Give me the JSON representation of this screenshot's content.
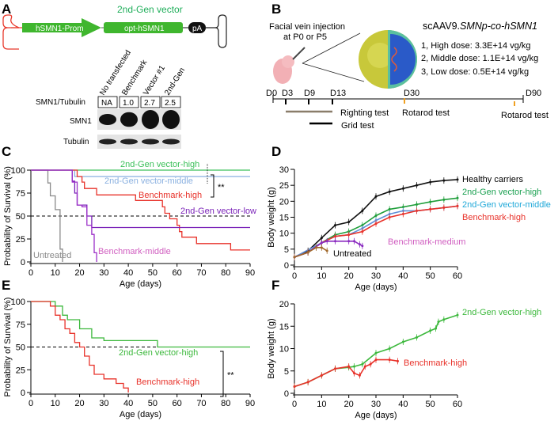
{
  "panels": {
    "a": "A",
    "b": "B",
    "c": "C",
    "d": "D",
    "e": "E",
    "f": "F"
  },
  "panel_a": {
    "title": "2nd-Gen vector",
    "promoter": "hSMN1-Prom",
    "gene": "opt-hSMN1",
    "polya": "pA",
    "lanes": [
      "No transfected",
      "Benchmark",
      "Vector #1",
      "2nd-Gen"
    ],
    "ratio_label": "SMN1/Tubulin",
    "ratios": [
      "NA",
      "1.0",
      "2.7",
      "2.5"
    ],
    "rows": [
      "SMN1",
      "Tubulin"
    ],
    "band_intensity_smn1": [
      0.45,
      0.7,
      1.0,
      1.0
    ],
    "colors": {
      "green": "#3fb62e",
      "itr_left": "#e8382b",
      "title": "#1fae5a"
    }
  },
  "panel_b": {
    "injection": [
      "Facial vein injection",
      "at P0 or P5"
    ],
    "vector_prefix": "scAAV9.",
    "vector_italic": "SMNp-co-hSMN1",
    "doses": [
      "1, High dose: 3.3E+14 vg/kg",
      "2, Middle dose: 1.1E+14 vg/kg",
      "3, Low dose: 0.5E+14 vg/kg"
    ],
    "timeline": [
      "D0",
      "D3",
      "D9",
      "D13",
      "D30",
      "D90"
    ],
    "tests": {
      "righting": "Righting test",
      "grid": "Grid test",
      "rotarod1": "Rotarod test",
      "rotarod2": "Rotarod test"
    }
  },
  "chart_data": [
    {
      "id": "C",
      "type": "line",
      "step": true,
      "xlabel": "Age (days)",
      "ylabel": "Probability of Survival (%)",
      "xlim": [
        0,
        90
      ],
      "ylim": [
        0,
        100
      ],
      "xticks": [
        "0",
        "10",
        "20",
        "30",
        "40",
        "50",
        "60",
        "70",
        "80",
        "90"
      ],
      "yticks": [
        "0",
        "25",
        "50",
        "75",
        "100"
      ],
      "hline": 50,
      "significance": "**",
      "series": [
        {
          "name": "Untreated",
          "color": "#8a8a8a",
          "points": [
            [
              0,
              100
            ],
            [
              7,
              100
            ],
            [
              7,
              86
            ],
            [
              8,
              86
            ],
            [
              8,
              72
            ],
            [
              10,
              72
            ],
            [
              10,
              57
            ],
            [
              12,
              57
            ],
            [
              12,
              14
            ],
            [
              13,
              14
            ],
            [
              13,
              0
            ]
          ]
        },
        {
          "name": "2nd-Gen vector-high",
          "color": "#3cc05a",
          "points": [
            [
              0,
              100
            ],
            [
              90,
              100
            ]
          ]
        },
        {
          "name": "2nd-Gen vector-middle",
          "color": "#8ab0e0",
          "points": [
            [
              0,
              100
            ],
            [
              18,
              100
            ],
            [
              18,
              93
            ],
            [
              90,
              93
            ]
          ]
        },
        {
          "name": "Benchmark-high",
          "color": "#e8322a",
          "points": [
            [
              0,
              100
            ],
            [
              19,
              100
            ],
            [
              19,
              93
            ],
            [
              21,
              93
            ],
            [
              21,
              87
            ],
            [
              22,
              87
            ],
            [
              22,
              80
            ],
            [
              27,
              80
            ],
            [
              27,
              73
            ],
            [
              43,
              73
            ],
            [
              43,
              67
            ],
            [
              54,
              67
            ],
            [
              54,
              60
            ],
            [
              55,
              60
            ],
            [
              55,
              53
            ],
            [
              57,
              53
            ],
            [
              57,
              47
            ],
            [
              60,
              47
            ],
            [
              60,
              40
            ],
            [
              61,
              40
            ],
            [
              61,
              33
            ],
            [
              62,
              33
            ],
            [
              62,
              27
            ],
            [
              68,
              27
            ],
            [
              68,
              20
            ],
            [
              82,
              20
            ],
            [
              82,
              13
            ],
            [
              90,
              13
            ]
          ]
        },
        {
          "name": "2nd-Gen vector-low",
          "color": "#7a22b8",
          "points": [
            [
              0,
              100
            ],
            [
              17,
              100
            ],
            [
              17,
              88
            ],
            [
              18,
              88
            ],
            [
              18,
              75
            ],
            [
              19,
              75
            ],
            [
              19,
              62
            ],
            [
              21,
              62
            ],
            [
              21,
              62
            ],
            [
              23,
              62
            ],
            [
              23,
              50
            ],
            [
              25,
              50
            ],
            [
              25,
              37.5
            ],
            [
              90,
              37.5
            ]
          ]
        },
        {
          "name": "Benchmark-middle",
          "color": "#9b2fc8",
          "label_color": "#d05ec0",
          "points": [
            [
              0,
              100
            ],
            [
              17,
              100
            ],
            [
              17,
              87
            ],
            [
              19,
              87
            ],
            [
              19,
              62
            ],
            [
              21,
              62
            ],
            [
              21,
              60
            ],
            [
              23,
              60
            ],
            [
              23,
              40
            ],
            [
              25,
              40
            ],
            [
              25,
              30
            ],
            [
              26,
              30
            ],
            [
              26,
              10
            ],
            [
              27,
              10
            ],
            [
              27,
              0
            ]
          ]
        }
      ]
    },
    {
      "id": "D",
      "type": "line",
      "xlabel": "Age (days)",
      "ylabel": "Body weight (g)",
      "xlim": [
        0,
        60
      ],
      "ylim": [
        0,
        30
      ],
      "xticks": [
        "0",
        "10",
        "20",
        "30",
        "40",
        "50",
        "60"
      ],
      "yticks": [
        "0",
        "5",
        "10",
        "15",
        "20",
        "25",
        "30"
      ],
      "series": [
        {
          "name": "Healthy carriers",
          "color": "#111111",
          "label_color": "#000000",
          "points": [
            [
              0,
              2.5
            ],
            [
              5,
              4.5
            ],
            [
              10,
              8.5
            ],
            [
              15,
              12.5
            ],
            [
              20,
              13.5
            ],
            [
              25,
              17
            ],
            [
              30,
              21.5
            ],
            [
              35,
              23
            ],
            [
              40,
              24
            ],
            [
              45,
              25
            ],
            [
              50,
              26
            ],
            [
              55,
              26.5
            ],
            [
              60,
              26.8
            ]
          ]
        },
        {
          "name": "2nd-Gen vector-high",
          "color": "#1f9e3a",
          "label_color": "#1aa050",
          "points": [
            [
              0,
              2.5
            ],
            [
              5,
              4
            ],
            [
              10,
              7
            ],
            [
              15,
              9.5
            ],
            [
              20,
              10.5
            ],
            [
              25,
              12.5
            ],
            [
              30,
              15.5
            ],
            [
              35,
              17.5
            ],
            [
              40,
              18.2
            ],
            [
              45,
              19
            ],
            [
              50,
              19.8
            ],
            [
              55,
              20.5
            ],
            [
              60,
              21
            ]
          ]
        },
        {
          "name": "2nd-Gen vector-middle",
          "color": "#5e8fd8",
          "label_color": "#1fa8d8",
          "points": [
            [
              0,
              2.5
            ],
            [
              10,
              7
            ],
            [
              15,
              9
            ],
            [
              20,
              9.5
            ],
            [
              25,
              11.5
            ],
            [
              30,
              14
            ],
            [
              35,
              16
            ],
            [
              40,
              17
            ],
            [
              45,
              17
            ],
            [
              50,
              17.5
            ],
            [
              55,
              18
            ],
            [
              60,
              18.5
            ]
          ]
        },
        {
          "name": "Benchmark-high",
          "color": "#e8322a",
          "label_color": "#e8322a",
          "points": [
            [
              0,
              2.5
            ],
            [
              5,
              4
            ],
            [
              10,
              7
            ],
            [
              15,
              9
            ],
            [
              20,
              9.5
            ],
            [
              25,
              10.5
            ],
            [
              30,
              13
            ],
            [
              35,
              15
            ],
            [
              40,
              16
            ],
            [
              45,
              17
            ],
            [
              50,
              17.5
            ],
            [
              55,
              18
            ],
            [
              60,
              18.5
            ]
          ]
        },
        {
          "name": "Benchmark-medium",
          "color": "#8a2bc0",
          "label_color": "#d05ec0",
          "points": [
            [
              0,
              2.5
            ],
            [
              5,
              4
            ],
            [
              10,
              7
            ],
            [
              12,
              7.5
            ],
            [
              15,
              7.5
            ],
            [
              20,
              7.5
            ],
            [
              22,
              7.5
            ],
            [
              24,
              6.5
            ],
            [
              25,
              6
            ]
          ]
        },
        {
          "name": "Untreated",
          "color": "#a0682a",
          "label_color": "#000000",
          "points": [
            [
              0,
              2.5
            ],
            [
              5,
              4
            ],
            [
              8,
              5.5
            ],
            [
              10,
              5.5
            ],
            [
              12,
              4.5
            ]
          ]
        }
      ]
    },
    {
      "id": "E",
      "type": "line",
      "step": true,
      "xlabel": "Age (days)",
      "ylabel": "Probability of Survival (%)",
      "xlim": [
        0,
        90
      ],
      "ylim": [
        0,
        100
      ],
      "xticks": [
        "0",
        "10",
        "20",
        "30",
        "40",
        "50",
        "60",
        "70",
        "80",
        "90"
      ],
      "yticks": [
        "0",
        "25",
        "50",
        "75",
        "100"
      ],
      "hline": 50,
      "significance": "**",
      "series": [
        {
          "name": "2nd-Gen vector-high",
          "color": "#3cb83c",
          "points": [
            [
              0,
              100
            ],
            [
              10,
              100
            ],
            [
              10,
              95
            ],
            [
              13,
              95
            ],
            [
              13,
              85
            ],
            [
              15,
              85
            ],
            [
              15,
              80
            ],
            [
              20,
              80
            ],
            [
              20,
              70
            ],
            [
              25,
              70
            ],
            [
              25,
              60
            ],
            [
              30,
              60
            ],
            [
              30,
              57
            ],
            [
              52,
              57
            ],
            [
              52,
              50
            ],
            [
              90,
              50
            ]
          ]
        },
        {
          "name": "Benchmark-high",
          "color": "#e8322a",
          "points": [
            [
              0,
              100
            ],
            [
              8,
              100
            ],
            [
              8,
              95
            ],
            [
              10,
              95
            ],
            [
              10,
              85
            ],
            [
              12,
              85
            ],
            [
              12,
              80
            ],
            [
              14,
              80
            ],
            [
              14,
              70
            ],
            [
              16,
              70
            ],
            [
              16,
              65
            ],
            [
              18,
              65
            ],
            [
              18,
              55
            ],
            [
              20,
              55
            ],
            [
              20,
              50
            ],
            [
              22,
              50
            ],
            [
              22,
              40
            ],
            [
              24,
              40
            ],
            [
              24,
              30
            ],
            [
              26,
              30
            ],
            [
              26,
              20
            ],
            [
              30,
              20
            ],
            [
              30,
              15
            ],
            [
              35,
              15
            ],
            [
              35,
              10
            ],
            [
              38,
              10
            ],
            [
              38,
              5
            ],
            [
              40,
              5
            ],
            [
              40,
              0
            ]
          ]
        }
      ]
    },
    {
      "id": "F",
      "type": "line",
      "xlabel": "Age (days)",
      "ylabel": "Body weight (g)",
      "xlim": [
        0,
        60
      ],
      "ylim": [
        0,
        20
      ],
      "xticks": [
        "0",
        "10",
        "20",
        "30",
        "40",
        "50",
        "60"
      ],
      "yticks": [
        "0",
        "5",
        "10",
        "15",
        "20"
      ],
      "series": [
        {
          "name": "2nd-Gen vector-high",
          "color": "#3cb83c",
          "points": [
            [
              0,
              1.5
            ],
            [
              5,
              2.5
            ],
            [
              10,
              4
            ],
            [
              15,
              5.5
            ],
            [
              20,
              5.8
            ],
            [
              22,
              6
            ],
            [
              25,
              6.5
            ],
            [
              30,
              9
            ],
            [
              35,
              10
            ],
            [
              40,
              11.5
            ],
            [
              45,
              12.5
            ],
            [
              50,
              14
            ],
            [
              52,
              14.5
            ],
            [
              53,
              16
            ],
            [
              55,
              16.5
            ],
            [
              60,
              17.5
            ]
          ]
        },
        {
          "name": "Benchmark-high",
          "color": "#e8322a",
          "points": [
            [
              0,
              1.5
            ],
            [
              5,
              2.5
            ],
            [
              10,
              4
            ],
            [
              15,
              5.5
            ],
            [
              20,
              6
            ],
            [
              22,
              4.5
            ],
            [
              24,
              4
            ],
            [
              26,
              6
            ],
            [
              28,
              6.5
            ],
            [
              30,
              7.5
            ],
            [
              35,
              7.5
            ],
            [
              38,
              7.2
            ]
          ]
        }
      ]
    }
  ]
}
